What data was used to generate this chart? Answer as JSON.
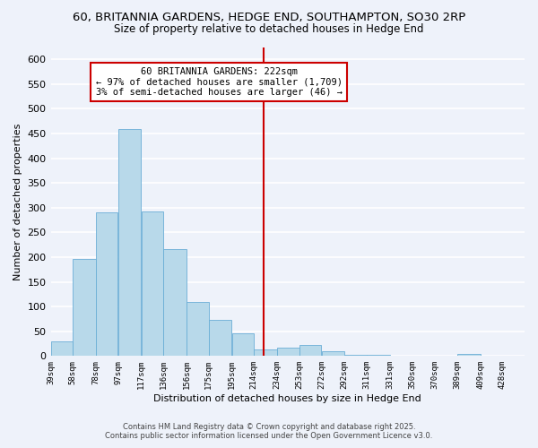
{
  "title_line1": "60, BRITANNIA GARDENS, HEDGE END, SOUTHAMPTON, SO30 2RP",
  "title_line2": "Size of property relative to detached houses in Hedge End",
  "xlabel": "Distribution of detached houses by size in Hedge End",
  "ylabel": "Number of detached properties",
  "bin_edges": [
    39,
    58,
    78,
    97,
    117,
    136,
    156,
    175,
    195,
    214,
    234,
    253,
    272,
    292,
    311,
    331,
    350,
    370,
    389,
    409,
    428
  ],
  "bar_heights": [
    30,
    197,
    291,
    460,
    293,
    216,
    110,
    73,
    46,
    13,
    17,
    23,
    9,
    3,
    3,
    1,
    0,
    0,
    5,
    0,
    1
  ],
  "bar_color": "#b8d9ea",
  "bar_edge_color": "#6aaed6",
  "property_size": 222,
  "vline_color": "#cc0000",
  "annotation_line1": "60 BRITANNIA GARDENS: 222sqm",
  "annotation_line2": "← 97% of detached houses are smaller (1,709)",
  "annotation_line3": "3% of semi-detached houses are larger (46) →",
  "annotation_box_color": "#ffffff",
  "annotation_box_edge_color": "#cc0000",
  "ylim": [
    0,
    625
  ],
  "background_color": "#eef2fa",
  "grid_color": "#ffffff",
  "yticks": [
    0,
    50,
    100,
    150,
    200,
    250,
    300,
    350,
    400,
    450,
    500,
    550,
    600
  ],
  "footer_line1": "Contains HM Land Registry data © Crown copyright and database right 2025.",
  "footer_line2": "Contains public sector information licensed under the Open Government Licence v3.0."
}
